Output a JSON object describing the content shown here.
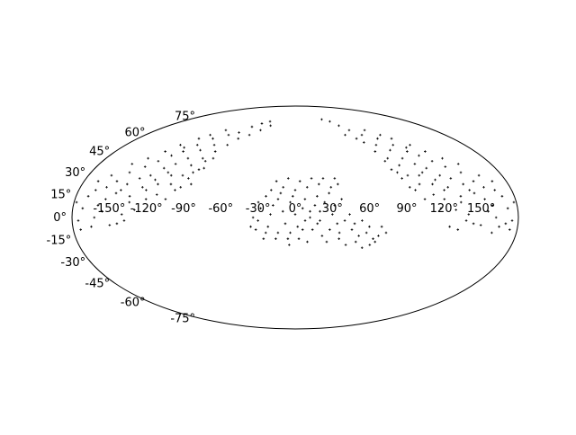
{
  "chart_data": {
    "type": "scatter",
    "projection": "mollweide",
    "title": "",
    "xlabel": "",
    "ylabel": "",
    "xlim": [
      -180,
      180
    ],
    "ylim": [
      -90,
      90
    ],
    "grid": false,
    "marker": "+",
    "marker_color": "#000000",
    "x_tick_labels": [
      {
        "value": -150,
        "text": "-150°"
      },
      {
        "value": -120,
        "text": "-120°"
      },
      {
        "value": -90,
        "text": "-90°"
      },
      {
        "value": -60,
        "text": "-60°"
      },
      {
        "value": -30,
        "text": "-30°"
      },
      {
        "value": 0,
        "text": "0°"
      },
      {
        "value": 30,
        "text": "30°"
      },
      {
        "value": 60,
        "text": "60°"
      },
      {
        "value": 90,
        "text": "90°"
      },
      {
        "value": 120,
        "text": "120°"
      },
      {
        "value": 150,
        "text": "150°"
      }
    ],
    "y_tick_labels": [
      {
        "value": 75,
        "text": "75°"
      },
      {
        "value": 60,
        "text": "60°"
      },
      {
        "value": 45,
        "text": "45°"
      },
      {
        "value": 30,
        "text": "30°"
      },
      {
        "value": 15,
        "text": "15°"
      },
      {
        "value": 0,
        "text": "0°"
      },
      {
        "value": -15,
        "text": "-15°"
      },
      {
        "value": -30,
        "text": "-30°"
      },
      {
        "value": -45,
        "text": "-45°"
      },
      {
        "value": -60,
        "text": "-60°"
      },
      {
        "value": -75,
        "text": "-75°"
      }
    ],
    "series": [
      {
        "points": [
          [
            -5,
            -18
          ],
          [
            3,
            -14
          ],
          [
            -14,
            -10
          ],
          [
            10,
            -16
          ],
          [
            22,
            -12
          ],
          [
            -22,
            -6
          ],
          [
            -30,
            -2
          ],
          [
            -8,
            -4
          ],
          [
            6,
            -8
          ],
          [
            18,
            -4
          ],
          [
            28,
            -8
          ],
          [
            36,
            -14
          ],
          [
            42,
            -18
          ],
          [
            50,
            -16
          ],
          [
            56,
            -20
          ],
          [
            62,
            -18
          ],
          [
            68,
            -12
          ],
          [
            74,
            -10
          ],
          [
            58,
            -10
          ],
          [
            46,
            -8
          ],
          [
            34,
            -4
          ],
          [
            40,
            -2
          ],
          [
            30,
            2
          ],
          [
            20,
            4
          ],
          [
            12,
            0
          ],
          [
            0,
            2
          ],
          [
            -10,
            4
          ],
          [
            -20,
            2
          ],
          [
            -28,
            6
          ],
          [
            -34,
            0
          ],
          [
            -36,
            -6
          ],
          [
            -24,
            -10
          ],
          [
            -16,
            -14
          ],
          [
            -4,
            -10
          ],
          [
            8,
            -2
          ],
          [
            16,
            8
          ],
          [
            24,
            10
          ],
          [
            32,
            8
          ],
          [
            38,
            12
          ],
          [
            28,
            16
          ],
          [
            18,
            14
          ],
          [
            8,
            12
          ],
          [
            -4,
            10
          ],
          [
            -14,
            12
          ],
          [
            -24,
            14
          ],
          [
            -30,
            10
          ],
          [
            -20,
            18
          ],
          [
            -10,
            20
          ],
          [
            0,
            18
          ],
          [
            10,
            20
          ],
          [
            20,
            22
          ],
          [
            30,
            20
          ],
          [
            36,
            22
          ],
          [
            4,
            24
          ],
          [
            -6,
            26
          ],
          [
            -16,
            24
          ],
          [
            14,
            26
          ],
          [
            24,
            26
          ],
          [
            34,
            26
          ],
          [
            -2,
            14
          ],
          [
            -12,
            16
          ],
          [
            6,
            6
          ],
          [
            -6,
            -14
          ],
          [
            14,
            -8
          ],
          [
            26,
            -16
          ],
          [
            36,
            -10
          ],
          [
            52,
            -12
          ],
          [
            64,
            -14
          ],
          [
            48,
            -4
          ],
          [
            -26,
            -14
          ],
          [
            -32,
            -8
          ],
          [
            2,
            -6
          ],
          [
            12,
            4
          ],
          [
            20,
            -2
          ],
          [
            -18,
            8
          ],
          [
            44,
            2
          ],
          [
            54,
            -2
          ],
          [
            60,
            -6
          ],
          [
            70,
            -6
          ],
          [
            66,
            -16
          ],
          [
            -150,
            -5
          ],
          [
            -140,
            2
          ],
          [
            -160,
            8
          ],
          [
            -170,
            14
          ],
          [
            -175,
            -2
          ],
          [
            -165,
            -6
          ],
          [
            -155,
            12
          ],
          [
            -145,
            18
          ],
          [
            -135,
            10
          ],
          [
            -128,
            20
          ],
          [
            -120,
            25
          ],
          [
            -112,
            30
          ],
          [
            -105,
            22
          ],
          [
            -98,
            28
          ],
          [
            -95,
            35
          ],
          [
            -102,
            40
          ],
          [
            -110,
            36
          ],
          [
            -118,
            33
          ],
          [
            -126,
            28
          ],
          [
            -134,
            26
          ],
          [
            -142,
            22
          ],
          [
            -148,
            16
          ],
          [
            -156,
            4
          ],
          [
            -162,
            0
          ],
          [
            -138,
            -2
          ],
          [
            -130,
            5
          ],
          [
            -122,
            12
          ],
          [
            -114,
            15
          ],
          [
            -106,
            12
          ],
          [
            -100,
            18
          ],
          [
            -92,
            26
          ],
          [
            -86,
            32
          ],
          [
            -88,
            40
          ],
          [
            -96,
            46
          ],
          [
            -104,
            50
          ],
          [
            -112,
            45
          ],
          [
            -120,
            42
          ],
          [
            -128,
            38
          ],
          [
            -136,
            34
          ],
          [
            -146,
            30
          ],
          [
            -152,
            24
          ],
          [
            -158,
            20
          ],
          [
            -166,
            18
          ],
          [
            -172,
            6
          ],
          [
            -144,
            -4
          ],
          [
            -136,
            14
          ],
          [
            -124,
            18
          ],
          [
            -116,
            22
          ],
          [
            -108,
            28
          ],
          [
            -96,
            20
          ],
          [
            -90,
            30
          ],
          [
            -84,
            38
          ],
          [
            -80,
            45
          ],
          [
            -86,
            50
          ],
          [
            -94,
            55
          ],
          [
            -102,
            58
          ],
          [
            -90,
            62
          ],
          [
            -80,
            58
          ],
          [
            -70,
            60
          ],
          [
            -60,
            65
          ],
          [
            -50,
            68
          ],
          [
            -40,
            70
          ],
          [
            -35,
            66
          ],
          [
            -45,
            62
          ],
          [
            -55,
            58
          ],
          [
            -65,
            55
          ],
          [
            -72,
            50
          ],
          [
            -78,
            40
          ],
          [
            -82,
            33
          ],
          [
            -88,
            22
          ],
          [
            -130,
            45
          ],
          [
            -122,
            50
          ],
          [
            -110,
            55
          ],
          [
            -115,
            48
          ],
          [
            -140,
            40
          ],
          [
            -150,
            36
          ],
          [
            -160,
            28
          ],
          [
            -168,
            24
          ],
          [
            -178,
            10
          ],
          [
            -174,
            -8
          ],
          [
            150,
            -5
          ],
          [
            140,
            2
          ],
          [
            160,
            8
          ],
          [
            170,
            14
          ],
          [
            175,
            -2
          ],
          [
            165,
            -6
          ],
          [
            155,
            12
          ],
          [
            145,
            18
          ],
          [
            135,
            10
          ],
          [
            128,
            20
          ],
          [
            120,
            25
          ],
          [
            112,
            30
          ],
          [
            105,
            22
          ],
          [
            98,
            28
          ],
          [
            95,
            35
          ],
          [
            102,
            40
          ],
          [
            110,
            36
          ],
          [
            118,
            33
          ],
          [
            126,
            28
          ],
          [
            134,
            26
          ],
          [
            142,
            22
          ],
          [
            148,
            16
          ],
          [
            156,
            4
          ],
          [
            162,
            0
          ],
          [
            138,
            -2
          ],
          [
            130,
            5
          ],
          [
            122,
            12
          ],
          [
            114,
            15
          ],
          [
            106,
            12
          ],
          [
            100,
            18
          ],
          [
            92,
            26
          ],
          [
            86,
            32
          ],
          [
            88,
            40
          ],
          [
            96,
            46
          ],
          [
            104,
            50
          ],
          [
            112,
            45
          ],
          [
            120,
            42
          ],
          [
            128,
            38
          ],
          [
            136,
            34
          ],
          [
            146,
            30
          ],
          [
            152,
            24
          ],
          [
            158,
            20
          ],
          [
            166,
            18
          ],
          [
            172,
            6
          ],
          [
            144,
            -4
          ],
          [
            136,
            14
          ],
          [
            124,
            18
          ],
          [
            116,
            22
          ],
          [
            108,
            28
          ],
          [
            96,
            20
          ],
          [
            90,
            30
          ],
          [
            84,
            38
          ],
          [
            80,
            45
          ],
          [
            86,
            50
          ],
          [
            94,
            55
          ],
          [
            102,
            58
          ],
          [
            90,
            62
          ],
          [
            80,
            58
          ],
          [
            70,
            62
          ],
          [
            62,
            66
          ],
          [
            55,
            70
          ],
          [
            45,
            72
          ],
          [
            60,
            58
          ],
          [
            70,
            55
          ],
          [
            75,
            52
          ],
          [
            130,
            45
          ],
          [
            122,
            50
          ],
          [
            110,
            55
          ],
          [
            115,
            48
          ],
          [
            140,
            40
          ],
          [
            150,
            36
          ],
          [
            160,
            28
          ],
          [
            168,
            24
          ],
          [
            178,
            10
          ],
          [
            174,
            -8
          ],
          [
            125,
            -6
          ],
          [
            132,
            -8
          ],
          [
            118,
            6
          ],
          [
            160,
            -10
          ],
          [
            170,
            -4
          ]
        ]
      }
    ]
  }
}
